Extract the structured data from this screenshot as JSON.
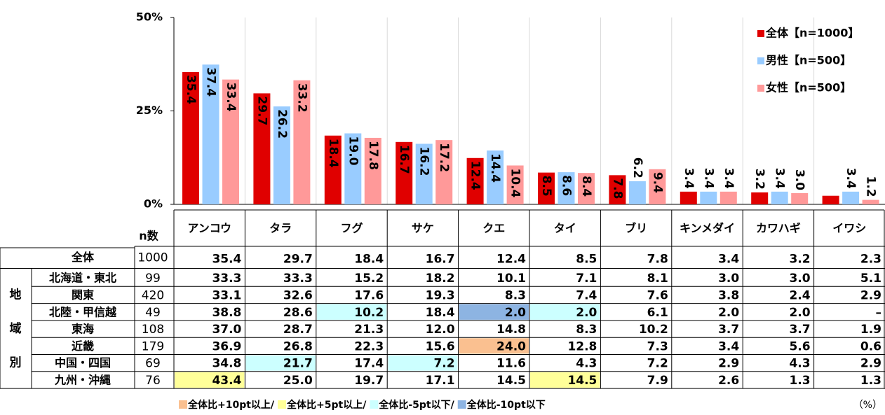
{
  "chart_data": {
    "type": "bar",
    "categories": [
      "アンコウ",
      "タラ",
      "フグ",
      "サケ",
      "クエ",
      "タイ",
      "ブリ",
      "キンメダイ",
      "カワハギ",
      "イワシ"
    ],
    "series": [
      {
        "name": "全体【n=1000】",
        "color": "#e00000",
        "values": [
          35.4,
          29.7,
          18.4,
          16.7,
          12.4,
          8.5,
          7.8,
          3.4,
          3.2,
          2.3
        ],
        "value_labels": [
          "35.4",
          "29.7",
          "18.4",
          "16.7",
          "12.4",
          "8.5",
          "7.8",
          "3.4",
          "3.2",
          null
        ]
      },
      {
        "name": "男性【n=500】",
        "color": "#99ccff",
        "values": [
          37.4,
          26.2,
          19.0,
          16.2,
          14.4,
          8.6,
          6.2,
          3.4,
          3.4,
          3.4
        ],
        "value_labels": [
          "37.4",
          "26.2",
          "19.0",
          "16.2",
          "14.4",
          "8.6",
          "6.2",
          "3.4",
          "3.4",
          "3.4"
        ]
      },
      {
        "name": "女性【n=500】",
        "color": "#ff9999",
        "values": [
          33.4,
          33.2,
          17.8,
          17.2,
          10.4,
          8.4,
          9.4,
          3.4,
          3.0,
          1.2
        ],
        "value_labels": [
          "33.4",
          "33.2",
          "17.8",
          "17.2",
          "10.4",
          "8.4",
          "9.4",
          "3.4",
          "3.0",
          "1.2"
        ]
      }
    ],
    "ylim": [
      0,
      50
    ],
    "yticks": [
      {
        "value": 0,
        "label": "0%"
      },
      {
        "value": 25,
        "label": "25%"
      },
      {
        "value": 50,
        "label": "50%"
      }
    ],
    "legend": "upper right"
  },
  "table": {
    "n_header": "n数",
    "total": {
      "label": "全体",
      "n": "1000",
      "values": [
        "35.4",
        "29.7",
        "18.4",
        "16.7",
        "12.4",
        "8.5",
        "7.8",
        "3.4",
        "3.2",
        "2.3"
      ]
    },
    "region_group": [
      "地",
      "域",
      "別"
    ],
    "rows": [
      {
        "label": "北海道・東北",
        "n": "99",
        "values": [
          "33.3",
          "33.3",
          "15.2",
          "18.2",
          "10.1",
          "7.1",
          "8.1",
          "3.0",
          "3.0",
          "5.1"
        ],
        "highlights": []
      },
      {
        "label": "関東",
        "n": "420",
        "values": [
          "33.1",
          "32.6",
          "17.6",
          "19.3",
          "8.3",
          "7.4",
          "7.6",
          "3.8",
          "2.4",
          "2.9"
        ],
        "highlights": []
      },
      {
        "label": "北陸・甲信越",
        "n": "49",
        "values": [
          "38.8",
          "28.6",
          "10.2",
          "18.4",
          "2.0",
          "2.0",
          "6.1",
          "2.0",
          "2.0",
          "–"
        ],
        "highlights": [
          {
            "column": 2,
            "legend": 2
          },
          {
            "column": 4,
            "legend": 3
          },
          {
            "column": 5,
            "legend": 2
          }
        ]
      },
      {
        "label": "東海",
        "n": "108",
        "values": [
          "37.0",
          "28.7",
          "21.3",
          "12.0",
          "14.8",
          "8.3",
          "10.2",
          "3.7",
          "3.7",
          "1.9"
        ],
        "highlights": []
      },
      {
        "label": "近畿",
        "n": "179",
        "values": [
          "36.9",
          "26.8",
          "22.3",
          "15.6",
          "24.0",
          "12.8",
          "7.3",
          "3.4",
          "5.6",
          "0.6"
        ],
        "highlights": [
          {
            "column": 4,
            "legend": 0
          }
        ]
      },
      {
        "label": "中国・四国",
        "n": "69",
        "values": [
          "34.8",
          "21.7",
          "17.4",
          "7.2",
          "11.6",
          "4.3",
          "7.2",
          "2.9",
          "4.3",
          "2.9"
        ],
        "highlights": [
          {
            "column": 1,
            "legend": 2
          },
          {
            "column": 3,
            "legend": 2
          }
        ]
      },
      {
        "label": "九州・沖縄",
        "n": "76",
        "values": [
          "43.4",
          "25.0",
          "19.7",
          "17.1",
          "14.5",
          "14.5",
          "7.9",
          "2.6",
          "1.3",
          "1.3"
        ],
        "highlights": [
          {
            "column": 0,
            "legend": 1
          },
          {
            "column": 5,
            "legend": 1
          }
        ]
      }
    ],
    "legend": [
      {
        "label": "全体比+10pt以上/",
        "color": "#fac090"
      },
      {
        "label": "全体比+5pt以上/",
        "color": "#ffff99"
      },
      {
        "label": "全体比-5pt以下/",
        "color": "#ccffff"
      },
      {
        "label": "全体比-10pt以下",
        "color": "#8db4e2"
      }
    ],
    "unit": "（%）"
  }
}
